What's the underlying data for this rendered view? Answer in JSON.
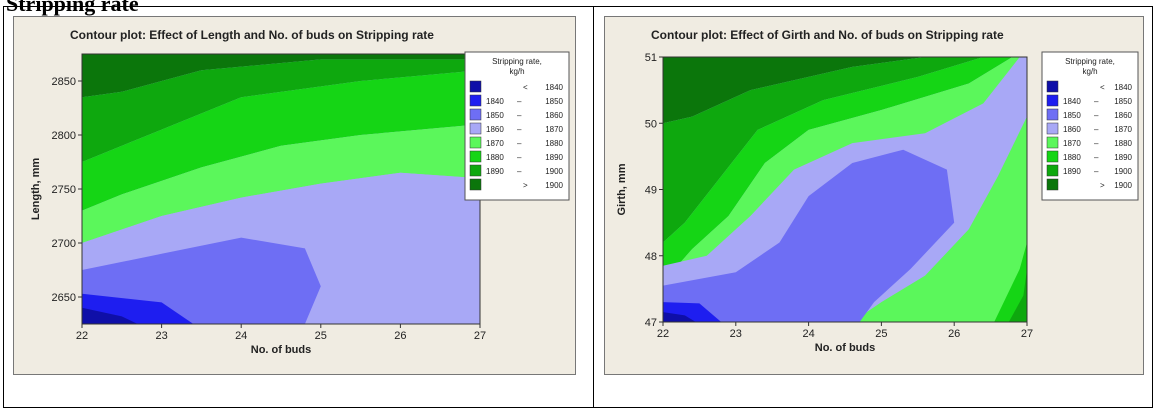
{
  "page_heading": "Stripping rate",
  "chart_data": [
    {
      "type": "contour",
      "title": "Contour plot: Effect of Length and No. of buds on Stripping rate",
      "xlabel": "No. of buds",
      "ylabel": "Length, mm",
      "xlim": [
        22,
        27
      ],
      "ylim": [
        2625,
        2875
      ],
      "x_ticks": [
        22,
        23,
        24,
        25,
        26,
        27
      ],
      "y_ticks": [
        2650,
        2700,
        2750,
        2800,
        2850
      ],
      "legend": {
        "title": [
          "Stripping rate,",
          "kg/h"
        ],
        "placement": "right",
        "levels": [
          {
            "lower": "<",
            "upper": "1840",
            "color": "#0f0fa8"
          },
          {
            "lower": "1840",
            "upper": "1850",
            "color": "#1e1ef0"
          },
          {
            "lower": "1850",
            "upper": "1860",
            "color": "#6e6ef4"
          },
          {
            "lower": "1860",
            "upper": "1870",
            "color": "#a8a8f6"
          },
          {
            "lower": "1870",
            "upper": "1880",
            "color": "#5bf75b"
          },
          {
            "lower": "1880",
            "upper": "1890",
            "color": "#15d515"
          },
          {
            "lower": "1890",
            "upper": "1900",
            "color": "#0ea80e"
          },
          {
            "lower": ">",
            "upper": "1900",
            "color": "#0b760b"
          }
        ]
      },
      "regions": [
        {
          "level": 1900,
          "points": [
            [
              22,
              2875
            ],
            [
              27,
              2875
            ],
            [
              27,
              2870
            ],
            [
              25,
              2870
            ],
            [
              23.5,
              2860
            ],
            [
              22.5,
              2840
            ],
            [
              22,
              2835
            ]
          ]
        },
        {
          "level": 1890,
          "points": [
            [
              22,
              2835
            ],
            [
              22.5,
              2840
            ],
            [
              23.5,
              2860
            ],
            [
              25,
              2870
            ],
            [
              27,
              2870
            ],
            [
              27,
              2860
            ],
            [
              25.5,
              2850
            ],
            [
              24,
              2835
            ],
            [
              23,
              2805
            ],
            [
              22,
              2775
            ]
          ]
        },
        {
          "level": 1880,
          "points": [
            [
              22,
              2775
            ],
            [
              23,
              2805
            ],
            [
              24,
              2835
            ],
            [
              25.5,
              2850
            ],
            [
              27,
              2860
            ],
            [
              27,
              2810
            ],
            [
              25.5,
              2800
            ],
            [
              24.5,
              2790
            ],
            [
              23.5,
              2770
            ],
            [
              22.5,
              2745
            ],
            [
              22,
              2730
            ]
          ]
        },
        {
          "level": 1870,
          "points": [
            [
              22,
              2730
            ],
            [
              22.5,
              2745
            ],
            [
              23.5,
              2770
            ],
            [
              24.5,
              2790
            ],
            [
              25.5,
              2800
            ],
            [
              27,
              2810
            ],
            [
              27,
              2760
            ],
            [
              26,
              2765
            ],
            [
              25,
              2755
            ],
            [
              24,
              2742
            ],
            [
              23,
              2725
            ],
            [
              22,
              2700
            ]
          ]
        },
        {
          "level": 1860,
          "points": [
            [
              22,
              2700
            ],
            [
              23,
              2725
            ],
            [
              24,
              2742
            ],
            [
              25,
              2755
            ],
            [
              26,
              2765
            ],
            [
              27,
              2760
            ],
            [
              27,
              2625
            ],
            [
              22,
              2625
            ]
          ]
        },
        {
          "level": 1850,
          "points": [
            [
              22,
              2675
            ],
            [
              23,
              2690
            ],
            [
              24,
              2705
            ],
            [
              24.8,
              2695
            ],
            [
              25,
              2660
            ],
            [
              24.8,
              2625
            ],
            [
              22,
              2625
            ]
          ]
        },
        {
          "level": 1840,
          "points": [
            [
              22,
              2653
            ],
            [
              23,
              2645
            ],
            [
              23.4,
              2625
            ],
            [
              22,
              2625
            ]
          ]
        },
        {
          "level": 1830,
          "points": [
            [
              22,
              2640
            ],
            [
              22.5,
              2632
            ],
            [
              22.7,
              2625
            ],
            [
              22,
              2625
            ]
          ]
        }
      ]
    },
    {
      "type": "contour",
      "title": "Contour plot: Effect of Girth and No. of buds on Stripping rate",
      "xlabel": "No. of buds",
      "ylabel": "Girth, mm",
      "xlim": [
        22,
        27
      ],
      "ylim": [
        47,
        51
      ],
      "x_ticks": [
        22,
        23,
        24,
        25,
        26,
        27
      ],
      "y_ticks": [
        47,
        48,
        49,
        50,
        51
      ],
      "legend": {
        "title": [
          "Stripping rate,",
          "kg/h"
        ],
        "placement": "right",
        "levels": [
          {
            "lower": "<",
            "upper": "1840",
            "color": "#0f0fa8"
          },
          {
            "lower": "1840",
            "upper": "1850",
            "color": "#1e1ef0"
          },
          {
            "lower": "1850",
            "upper": "1860",
            "color": "#6e6ef4"
          },
          {
            "lower": "1860",
            "upper": "1870",
            "color": "#a8a8f6"
          },
          {
            "lower": "1870",
            "upper": "1880",
            "color": "#5bf75b"
          },
          {
            "lower": "1880",
            "upper": "1890",
            "color": "#15d515"
          },
          {
            "lower": "1890",
            "upper": "1900",
            "color": "#0ea80e"
          },
          {
            "lower": ">",
            "upper": "1900",
            "color": "#0b760b"
          }
        ]
      },
      "regions": [
        {
          "level": 1900,
          "points": [
            [
              22,
              51
            ],
            [
              25.6,
              51
            ],
            [
              24.6,
              50.85
            ],
            [
              23.2,
              50.5
            ],
            [
              22.4,
              50.1
            ],
            [
              22,
              50
            ]
          ]
        },
        {
          "level": 1890,
          "points": [
            [
              22,
              50
            ],
            [
              22.4,
              50.1
            ],
            [
              23.2,
              50.5
            ],
            [
              24.6,
              50.85
            ],
            [
              25.6,
              51
            ],
            [
              26.4,
              51
            ],
            [
              25.5,
              50.7
            ],
            [
              24.2,
              50.35
            ],
            [
              23.3,
              49.9
            ],
            [
              22.8,
              49.2
            ],
            [
              22.3,
              48.5
            ],
            [
              22,
              48.2
            ]
          ]
        },
        {
          "level": 1880,
          "points": [
            [
              22,
              48.2
            ],
            [
              22.3,
              48.5
            ],
            [
              22.8,
              49.2
            ],
            [
              23.3,
              49.9
            ],
            [
              24.2,
              50.35
            ],
            [
              25.5,
              50.7
            ],
            [
              26.4,
              51
            ],
            [
              26.8,
              51
            ],
            [
              26.2,
              50.6
            ],
            [
              25,
              50.2
            ],
            [
              24,
              49.9
            ],
            [
              23.4,
              49.4
            ],
            [
              22.9,
              48.6
            ],
            [
              22.4,
              48.1
            ],
            [
              22,
              47.6
            ]
          ]
        },
        {
          "level": 1870,
          "points": [
            [
              22,
              47.6
            ],
            [
              22.4,
              48.1
            ],
            [
              22.9,
              48.6
            ],
            [
              23.4,
              49.4
            ],
            [
              24,
              49.9
            ],
            [
              25,
              50.2
            ],
            [
              26.2,
              50.6
            ],
            [
              26.8,
              51
            ],
            [
              27,
              51
            ],
            [
              27,
              47
            ],
            [
              22,
              47
            ]
          ]
        },
        {
          "level": 1860,
          "points": [
            [
              22,
              47.85
            ],
            [
              22.6,
              48
            ],
            [
              23.2,
              48.6
            ],
            [
              23.8,
              49.3
            ],
            [
              24.6,
              49.7
            ],
            [
              25.6,
              49.85
            ],
            [
              26.4,
              50.3
            ],
            [
              26.9,
              51
            ],
            [
              27,
              51
            ],
            [
              27,
              50.1
            ],
            [
              26.6,
              49.2
            ],
            [
              26.2,
              48.4
            ],
            [
              25.6,
              47.7
            ],
            [
              25,
              47.3
            ],
            [
              24.6,
              47
            ],
            [
              22,
              47
            ]
          ]
        },
        {
          "level": 1850,
          "points": [
            [
              22,
              47.55
            ],
            [
              23,
              47.75
            ],
            [
              23.6,
              48.2
            ],
            [
              24,
              48.9
            ],
            [
              24.6,
              49.4
            ],
            [
              25.3,
              49.6
            ],
            [
              25.9,
              49.3
            ],
            [
              26,
              48.5
            ],
            [
              25.4,
              47.8
            ],
            [
              24.9,
              47.3
            ],
            [
              24.7,
              47
            ],
            [
              22,
              47
            ]
          ]
        },
        {
          "level": 1840,
          "points": [
            [
              22,
              47.3
            ],
            [
              22.5,
              47.28
            ],
            [
              22.8,
              47
            ],
            [
              22,
              47
            ]
          ]
        },
        {
          "level": 1830,
          "points": [
            [
              22,
              47.15
            ],
            [
              22.3,
              47.1
            ],
            [
              22.45,
              47
            ],
            [
              22,
              47
            ]
          ]
        }
      ],
      "overlays": [
        {
          "level": 1880,
          "points": [
            [
              26.55,
              47
            ],
            [
              27,
              47
            ],
            [
              27,
              48.2
            ],
            [
              26.9,
              47.8
            ]
          ]
        },
        {
          "level": 1890,
          "points": [
            [
              26.75,
              47
            ],
            [
              27,
              47
            ],
            [
              27,
              47.8
            ],
            [
              26.95,
              47.4
            ]
          ]
        }
      ]
    }
  ]
}
